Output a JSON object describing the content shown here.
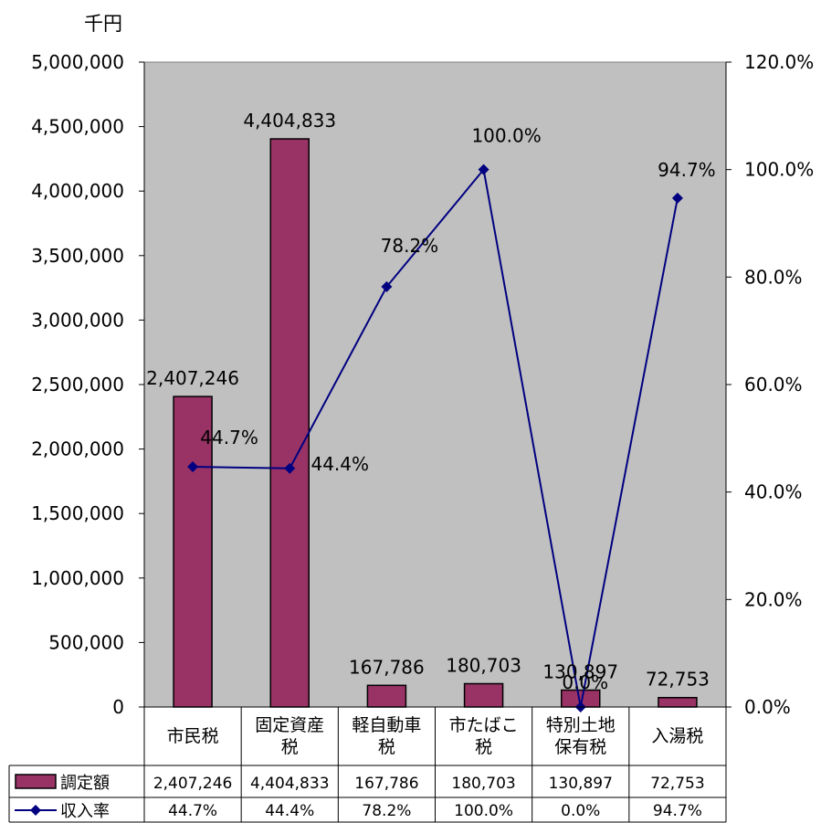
{
  "chart_data": {
    "type": "bar",
    "unit_label": "千円",
    "categories": [
      [
        "市民税"
      ],
      [
        "固定資産",
        "税"
      ],
      [
        "軽自動車",
        "税"
      ],
      [
        "市たばこ",
        "税"
      ],
      [
        "特別土地",
        "保有税"
      ],
      [
        "入湯税"
      ]
    ],
    "series": [
      {
        "name": "調定額",
        "type": "bar",
        "axis": "left",
        "color": "#993366",
        "values": [
          2407246,
          4404833,
          167786,
          180703,
          130897,
          72753
        ],
        "labels": [
          "2,407,246",
          "4,404,833",
          "167,786",
          "180,703",
          "130,897",
          "72,753"
        ]
      },
      {
        "name": "収入率",
        "type": "line",
        "axis": "right",
        "color": "#000080",
        "marker": "diamond",
        "values": [
          44.7,
          44.4,
          78.2,
          100.0,
          0.0,
          94.7
        ],
        "labels": [
          "44.7%",
          "44.4%",
          "78.2%",
          "100.0%",
          "0.0%",
          "94.7%"
        ]
      }
    ],
    "left_axis": {
      "range": [
        0,
        5000000
      ],
      "ticks": [
        {
          "value": 0,
          "label": "0"
        },
        {
          "value": 500000,
          "label": "500,000"
        },
        {
          "value": 1000000,
          "label": "1,000,000"
        },
        {
          "value": 1500000,
          "label": "1,500,000"
        },
        {
          "value": 2000000,
          "label": "2,000,000"
        },
        {
          "value": 2500000,
          "label": "2,500,000"
        },
        {
          "value": 3000000,
          "label": "3,000,000"
        },
        {
          "value": 3500000,
          "label": "3,500,000"
        },
        {
          "value": 4000000,
          "label": "4,000,000"
        },
        {
          "value": 4500000,
          "label": "4,500,000"
        },
        {
          "value": 5000000,
          "label": "5,000,000"
        }
      ]
    },
    "right_axis": {
      "range": [
        0,
        120
      ],
      "ticks": [
        {
          "value": 0,
          "label": "0.0%"
        },
        {
          "value": 20,
          "label": "20.0%"
        },
        {
          "value": 40,
          "label": "40.0%"
        },
        {
          "value": 60,
          "label": "60.0%"
        },
        {
          "value": 80,
          "label": "80.0%"
        },
        {
          "value": 100,
          "label": "100.0%"
        },
        {
          "value": 120,
          "label": "120.0%"
        }
      ]
    },
    "plot_background": "#c0c0c0",
    "gridlines": false,
    "data_table": true
  }
}
